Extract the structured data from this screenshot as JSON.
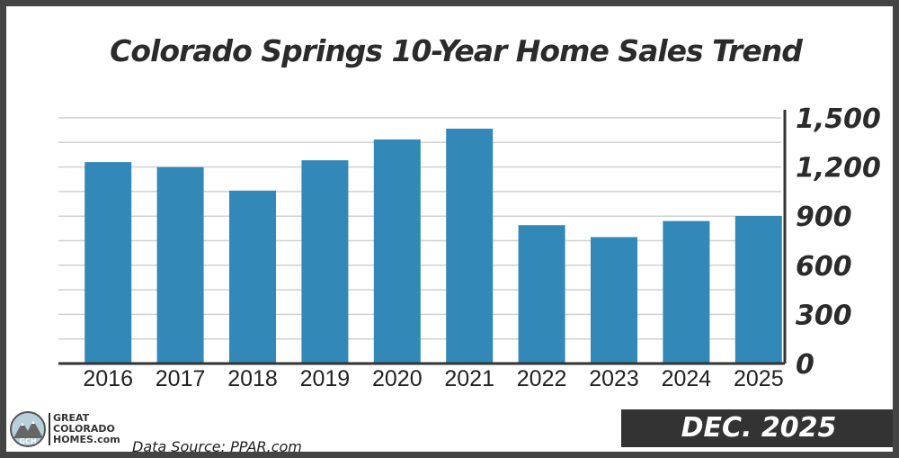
{
  "chart_data": {
    "type": "bar",
    "title": "Colorado Springs 10-Year Home Sales Trend",
    "categories": [
      "2016",
      "2017",
      "2018",
      "2019",
      "2020",
      "2021",
      "2022",
      "2023",
      "2024",
      "2025"
    ],
    "values": [
      1230,
      1199,
      1056,
      1241,
      1368,
      1434,
      845,
      772,
      870,
      901
    ],
    "ylim": [
      0,
      1500
    ],
    "yticks": [
      0,
      300,
      600,
      900,
      1200,
      1500
    ],
    "ytick_labels": [
      "0",
      "300",
      "600",
      "900",
      "1,200",
      "1,500"
    ],
    "yaxis_position": "right",
    "grid": true,
    "bar_color": "#3288b6"
  },
  "footer": {
    "logo_lines": [
      "GREAT",
      "COLORADO",
      "HOMES.com"
    ],
    "source": "Data Source: PPAR.com",
    "date_badge": "DEC. 2025"
  }
}
